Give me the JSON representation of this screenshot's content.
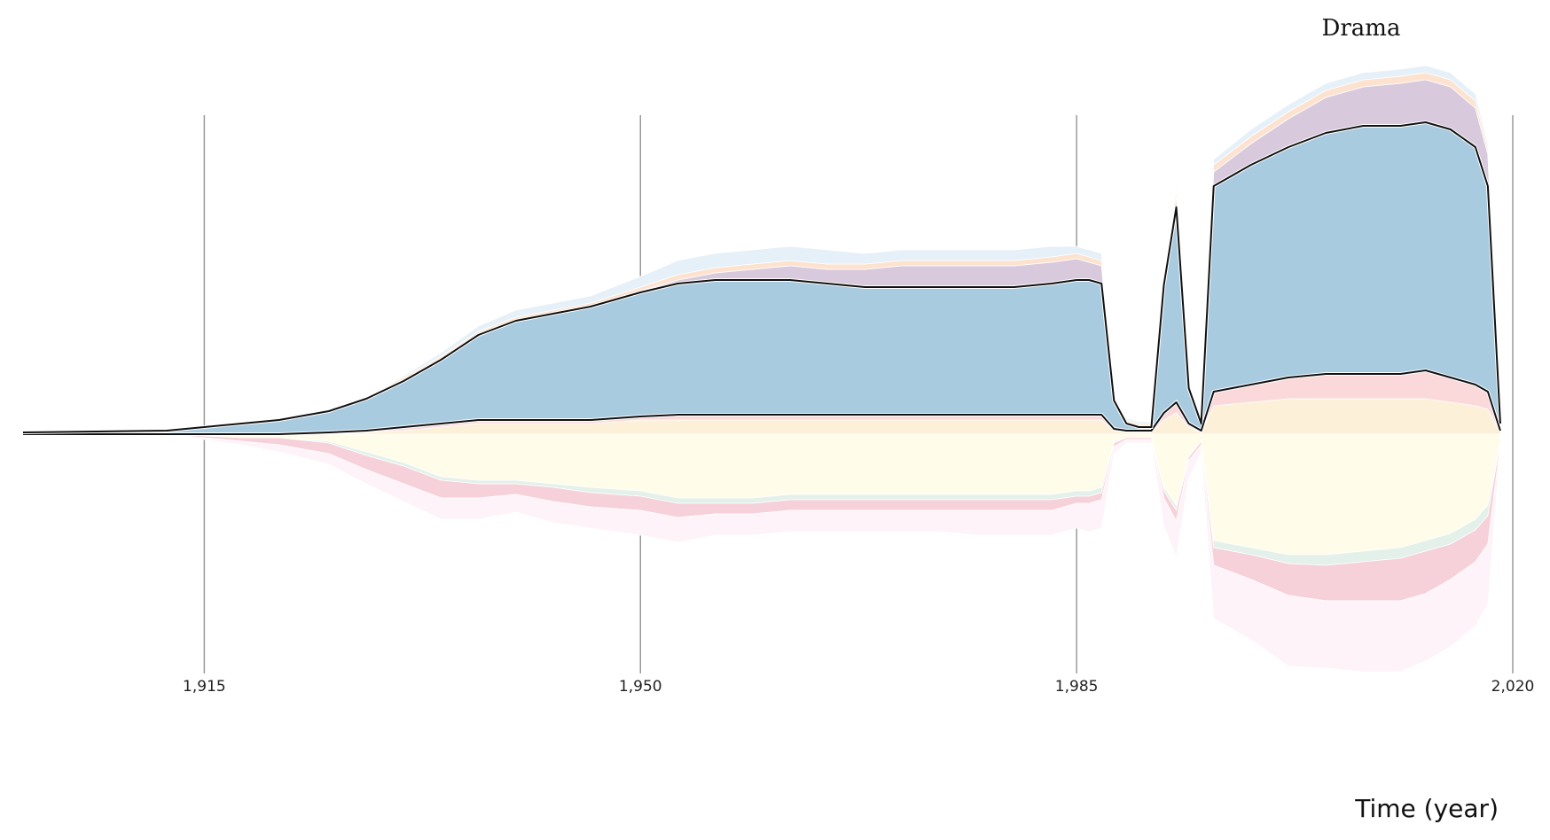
{
  "chart_data": {
    "type": "area",
    "title": "Drama",
    "xlabel": "Time (year)",
    "ylabel": "",
    "xlim": [
      1908,
      2020
    ],
    "x_ticks": [
      1915,
      1950,
      1985,
      2020
    ],
    "x_tick_labels": [
      "1,915",
      "1,950",
      "1,985",
      "2,020"
    ],
    "grid": "vertical",
    "legend": "none",
    "highlight_series": "Drama",
    "x": [
      1908,
      1912,
      1915,
      1918,
      1921,
      1925,
      1928,
      1931,
      1934,
      1937,
      1940,
      1943,
      1946,
      1950,
      1953,
      1956,
      1959,
      1962,
      1965,
      1968,
      1971,
      1974,
      1977,
      1980,
      1983,
      1985,
      1986,
      1987,
      1988,
      1989,
      1990,
      1991,
      1992,
      1993,
      1994,
      1995,
      1996,
      1999,
      2002,
      2005,
      2008,
      2011,
      2013,
      2015,
      2017,
      2018,
      2019
    ],
    "series": [
      {
        "name": "",
        "color": "#fdf3f8",
        "stack": "below",
        "values": [
          0,
          0,
          0.5,
          1,
          2,
          3,
          4,
          5,
          6,
          6,
          5,
          6,
          6,
          7,
          7,
          6,
          6,
          6,
          6,
          6,
          6,
          6,
          7,
          7,
          7,
          7,
          8,
          8,
          2,
          1,
          1,
          1,
          8,
          10,
          5,
          2,
          15,
          17,
          20,
          19,
          20,
          20,
          19,
          19,
          18,
          17,
          1
        ]
      },
      {
        "name": "",
        "color": "#f6d1d9",
        "stack": "below",
        "values": [
          0,
          0,
          0.5,
          1,
          2,
          3,
          4,
          5,
          5,
          4,
          3,
          4,
          4,
          4,
          4,
          3,
          3,
          3,
          3,
          3,
          3,
          3,
          3,
          3,
          3,
          2,
          2,
          2,
          1,
          0.5,
          0.5,
          0.5,
          2,
          3,
          1,
          1,
          5,
          7,
          9,
          10,
          11,
          12,
          12,
          10,
          9,
          8,
          1
        ]
      },
      {
        "name": "",
        "color": "#e3f1ea",
        "stack": "below",
        "values": [
          0,
          0,
          0,
          0,
          0,
          0.5,
          1,
          1,
          1,
          1,
          1,
          1,
          1.5,
          1.5,
          1.5,
          1.5,
          1.5,
          1.5,
          1.5,
          1.5,
          1.5,
          1.5,
          1.5,
          1.5,
          1.5,
          1.5,
          1.5,
          1.5,
          0.5,
          0,
          0,
          0,
          1,
          1.5,
          0.5,
          0,
          2,
          2,
          2.5,
          3,
          3,
          3,
          3,
          3,
          3,
          3,
          0
        ]
      },
      {
        "name": "",
        "color": "#fffcea",
        "stack": "below",
        "values": [
          0,
          0,
          0.5,
          1,
          1,
          2,
          5,
          8,
          12,
          13,
          13,
          14,
          15,
          16,
          18,
          18,
          18,
          17,
          17,
          17,
          17,
          17,
          17,
          17,
          17,
          16,
          16,
          15,
          2,
          1,
          1,
          1,
          15,
          20,
          6,
          2,
          30,
          32,
          34,
          34,
          33,
          32,
          30,
          28,
          24,
          20,
          2
        ]
      },
      {
        "name": "",
        "color": "#fdf0d8",
        "stack": "above",
        "values": [
          0,
          0,
          0,
          0,
          0,
          0,
          0.5,
          1,
          2,
          3,
          3,
          3,
          3,
          4,
          4,
          4,
          4,
          4,
          4,
          4,
          4,
          4,
          4,
          4,
          4,
          4,
          4,
          4,
          1,
          0.5,
          0.5,
          0.5,
          4,
          6,
          2,
          0.5,
          8,
          9,
          10,
          10,
          10,
          10,
          10,
          9,
          8,
          7,
          0.5
        ]
      },
      {
        "name": "",
        "color": "#fbd9db",
        "stack": "above",
        "values": [
          0,
          0,
          0,
          0,
          0,
          0.5,
          0.5,
          1,
          1,
          1,
          1,
          1,
          1,
          1,
          1.5,
          1.5,
          1.5,
          1.5,
          1.5,
          1.5,
          1.5,
          1.5,
          1.5,
          1.5,
          1.5,
          1.5,
          1.5,
          1.5,
          0.5,
          0.5,
          0.5,
          0.5,
          2,
          3,
          1,
          0.5,
          4,
          5,
          6,
          7,
          7,
          7,
          8,
          7,
          6,
          5,
          0.5
        ]
      },
      {
        "name": "Drama",
        "color": "#a8cbe0",
        "stack": "above",
        "values": [
          0.5,
          1,
          2,
          3,
          4,
          6,
          9,
          13,
          18,
          24,
          28,
          30,
          32,
          35,
          37,
          38,
          38,
          38,
          37,
          36,
          36,
          36,
          36,
          36,
          37,
          38,
          38,
          37,
          8,
          2,
          1,
          1,
          36,
          55,
          10,
          2,
          58,
          62,
          65,
          68,
          70,
          70,
          70,
          70,
          67,
          58,
          2
        ]
      },
      {
        "name": "",
        "color": "#d9c9dc",
        "stack": "above",
        "values": [
          0,
          0,
          0,
          0,
          0,
          0,
          0,
          0,
          0,
          0,
          0,
          0,
          0,
          0.5,
          1,
          2,
          3,
          4,
          4,
          5,
          6,
          6,
          6,
          6,
          6,
          6,
          5,
          5,
          1,
          0.5,
          0.5,
          0.5,
          2,
          3,
          1,
          0.5,
          4,
          6,
          8,
          10,
          11,
          12,
          12,
          12,
          11,
          9,
          0.5
        ]
      },
      {
        "name": "",
        "color": "#fde3cf",
        "stack": "above",
        "values": [
          0,
          0,
          0,
          0,
          0,
          0,
          0.5,
          1,
          1,
          1,
          1,
          1,
          1,
          1,
          1.5,
          1.5,
          1.5,
          1.5,
          1.5,
          1.5,
          1.5,
          1.5,
          1.5,
          1.5,
          1.5,
          1.5,
          1.5,
          1.5,
          0.5,
          0.5,
          0.5,
          0.5,
          1.5,
          2,
          1,
          0.5,
          2,
          2,
          2,
          2,
          2,
          2,
          2,
          2,
          2,
          1.5,
          0
        ]
      },
      {
        "name": "",
        "color": "#e5f0f8",
        "stack": "above",
        "values": [
          0,
          0,
          0,
          0,
          0,
          0,
          0,
          0.5,
          1,
          1.5,
          2,
          2,
          2,
          3,
          4,
          4,
          4,
          4,
          4,
          3,
          3,
          3,
          3,
          3,
          3,
          2,
          2,
          2,
          0.5,
          0.5,
          0.5,
          0.5,
          1,
          1.5,
          0.5,
          0.5,
          1.5,
          2,
          2,
          2,
          2,
          2,
          2,
          2,
          2,
          1.5,
          0
        ]
      }
    ]
  }
}
